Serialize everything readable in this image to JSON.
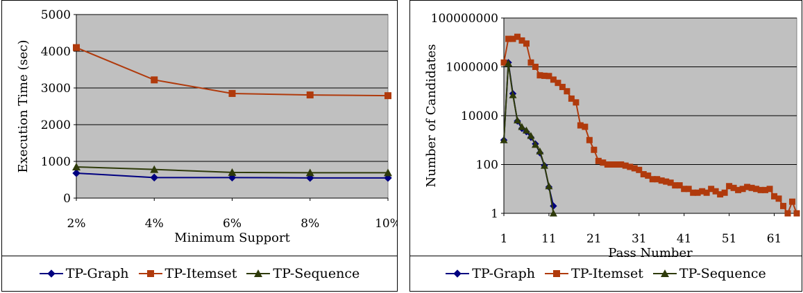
{
  "chart_data": [
    {
      "type": "line",
      "title": "",
      "xlabel": "Minimum Support",
      "ylabel": "Execution Time (sec)",
      "categories": [
        "2%",
        "4%",
        "6%",
        "8%",
        "10%"
      ],
      "ylim": [
        0,
        5000
      ],
      "yticks": [
        0,
        1000,
        2000,
        3000,
        4000,
        5000
      ],
      "grid": true,
      "legend": "bottom",
      "series": [
        {
          "name": "TP-Graph",
          "color": "#000080",
          "marker": "diamond",
          "values": [
            680,
            560,
            560,
            550,
            550
          ]
        },
        {
          "name": "TP-Itemset",
          "color": "#b03a0c",
          "marker": "square",
          "values": [
            4100,
            3220,
            2850,
            2810,
            2790
          ]
        },
        {
          "name": "TP-Sequence",
          "color": "#2e3a0a",
          "marker": "triangle",
          "values": [
            850,
            780,
            700,
            690,
            690
          ]
        }
      ]
    },
    {
      "type": "line",
      "title": "",
      "xlabel": "Pass Number",
      "ylabel": "Number of Candidates",
      "yscale": "log",
      "ylim": [
        1,
        100000000
      ],
      "yticks": [
        1,
        100,
        10000,
        1000000,
        100000000
      ],
      "ytick_labels": [
        "1",
        "100",
        "10000",
        "1000000",
        "100000000"
      ],
      "xlim": [
        1,
        66
      ],
      "xticks": [
        1,
        11,
        21,
        31,
        41,
        51,
        61
      ],
      "grid": true,
      "legend": "bottom",
      "series": [
        {
          "name": "TP-Graph",
          "color": "#000080",
          "marker": "diamond",
          "x": [
            1,
            2,
            3,
            4,
            5,
            6,
            7,
            8,
            9,
            10,
            11,
            12
          ],
          "values": [
            1000,
            1500000,
            80000,
            6000,
            3000,
            2200,
            1300,
            700,
            300,
            90,
            12,
            2
          ]
        },
        {
          "name": "TP-Itemset",
          "color": "#b03a0c",
          "marker": "square",
          "x": [
            1,
            2,
            3,
            4,
            5,
            6,
            7,
            8,
            9,
            10,
            11,
            12,
            13,
            14,
            15,
            16,
            17,
            18,
            19,
            20,
            21,
            22,
            23,
            24,
            25,
            26,
            27,
            28,
            29,
            30,
            31,
            32,
            33,
            34,
            35,
            36,
            37,
            38,
            39,
            40,
            41,
            42,
            43,
            44,
            45,
            46,
            47,
            48,
            49,
            50,
            51,
            52,
            53,
            54,
            55,
            56,
            57,
            58,
            59,
            60,
            61,
            62,
            63,
            64,
            65,
            66
          ],
          "values": [
            1500000,
            14000000,
            14000000,
            17000000,
            12000000,
            9000000,
            1500000,
            1000000,
            450000,
            430000,
            420000,
            300000,
            220000,
            150000,
            100000,
            50000,
            35000,
            4000,
            3500,
            1000,
            400,
            140,
            120,
            100,
            100,
            100,
            100,
            90,
            80,
            70,
            60,
            40,
            35,
            25,
            25,
            22,
            20,
            18,
            14,
            14,
            10,
            10,
            7,
            7,
            8,
            7,
            10,
            8,
            6,
            7,
            13,
            11,
            9,
            10,
            12,
            11,
            10,
            9,
            9,
            10,
            5,
            4,
            2,
            1,
            3,
            1
          ]
        },
        {
          "name": "TP-Sequence",
          "color": "#2e3a0a",
          "marker": "triangle",
          "x": [
            1,
            2,
            3,
            4,
            5,
            6,
            7,
            8,
            9,
            10,
            11,
            12
          ],
          "values": [
            1000,
            1400000,
            70000,
            6500,
            3500,
            2500,
            1500,
            650,
            350,
            90,
            13,
            1
          ]
        }
      ]
    }
  ]
}
